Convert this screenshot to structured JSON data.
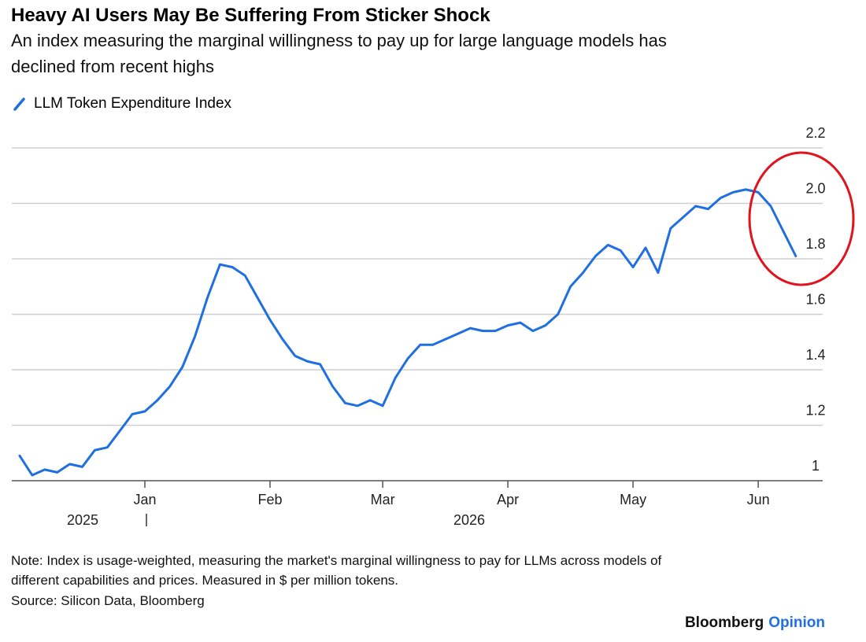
{
  "chart_data": {
    "type": "line",
    "title": "Heavy AI Users May Be Suffering From Sticker Shock",
    "subtitle": [
      "An index measuring the marginal willingness to pay up for large language models has",
      "declined from recent highs"
    ],
    "categories": [
      null,
      null,
      null,
      null,
      null,
      null,
      null,
      null,
      null,
      null,
      "Jan",
      null,
      null,
      null,
      null,
      null,
      null,
      null,
      null,
      null,
      "Feb",
      null,
      null,
      null,
      null,
      null,
      null,
      null,
      null,
      "Mar",
      null,
      null,
      null,
      null,
      null,
      null,
      null,
      null,
      null,
      "Apr",
      null,
      null,
      null,
      null,
      null,
      null,
      null,
      null,
      null,
      "May",
      null,
      null,
      null,
      null,
      null,
      null,
      null,
      null,
      null,
      "Jun",
      null,
      null,
      null
    ],
    "year_labels": [
      "2025",
      "2026"
    ],
    "series": [
      {
        "name": "LLM Token Expenditure Index",
        "color": "#1f6fe0",
        "values": [
          1.09,
          1.02,
          1.04,
          1.03,
          1.06,
          1.05,
          1.11,
          1.12,
          1.18,
          1.24,
          1.25,
          1.29,
          1.34,
          1.41,
          1.52,
          1.66,
          1.78,
          1.77,
          1.74,
          1.66,
          1.58,
          1.51,
          1.45,
          1.43,
          1.42,
          1.34,
          1.28,
          1.27,
          1.29,
          1.27,
          1.37,
          1.44,
          1.49,
          1.49,
          1.51,
          1.53,
          1.55,
          1.54,
          1.54,
          1.56,
          1.57,
          1.54,
          1.56,
          1.6,
          1.7,
          1.75,
          1.81,
          1.85,
          1.83,
          1.77,
          1.84,
          1.75,
          1.91,
          1.95,
          1.99,
          1.98,
          2.02,
          2.04,
          2.05,
          2.04,
          1.99,
          1.9,
          1.81
        ]
      }
    ],
    "ylim": [
      1.0,
      2.2
    ],
    "yticks": [
      1.0,
      1.2,
      1.4,
      1.6,
      1.8,
      {
        "value": 2.0,
        "label": "2.0"
      },
      2.2
    ],
    "grid": true,
    "note": [
      "Note: Index is usage-weighted, measuring the market's marginal willingness to pay for LLMs across models of",
      "different capabilities and prices. Measured in $ per million tokens."
    ],
    "source": "Source: Silicon Data, Bloomberg",
    "brand": {
      "name": "Bloomberg",
      "section": "Opinion"
    }
  }
}
